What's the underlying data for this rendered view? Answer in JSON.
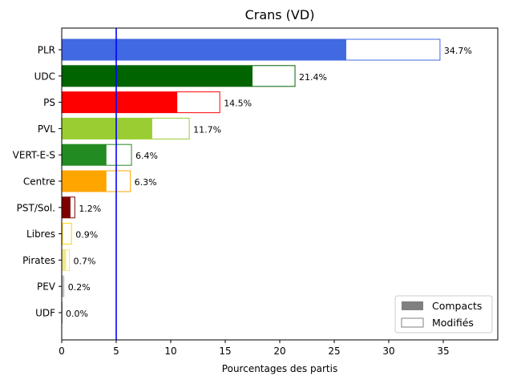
{
  "chart_data": {
    "type": "bar",
    "orientation": "horizontal",
    "title": "Crans (VD)",
    "xlabel": "Pourcentages des partis",
    "ylabel": "",
    "xlim": [
      0,
      40
    ],
    "xticks": [
      0,
      5,
      10,
      15,
      20,
      25,
      30,
      35
    ],
    "reference_line": {
      "x": 5,
      "color": "#0000ff"
    },
    "categories": [
      "PLR",
      "UDC",
      "PS",
      "PVL",
      "VERT-E-S",
      "Centre",
      "PST/Sol.",
      "Libres",
      "Pirates",
      "PEV",
      "UDF"
    ],
    "series": [
      {
        "name": "Compacts",
        "values": [
          26.1,
          17.5,
          10.6,
          8.3,
          4.1,
          4.1,
          0.8,
          0.1,
          0.4,
          0.2,
          0.0
        ]
      },
      {
        "name": "Modifiés",
        "values": [
          34.7,
          21.4,
          14.5,
          11.7,
          6.4,
          6.3,
          1.2,
          0.9,
          0.7,
          0.2,
          0.0
        ]
      }
    ],
    "data_labels": [
      "34.7%",
      "21.4%",
      "14.5%",
      "11.7%",
      "6.4%",
      "6.3%",
      "1.2%",
      "0.9%",
      "0.7%",
      "0.2%",
      "0.0%"
    ],
    "colors": [
      "#4169e1",
      "#006400",
      "#ff0000",
      "#9acd32",
      "#228b22",
      "#ffa500",
      "#800000",
      "#ffd700",
      "#f0e68c",
      "#c0c0c0",
      "#a9a9a9"
    ],
    "legend": {
      "placement": "lower-right",
      "entries": [
        {
          "label": "Compacts",
          "style": "filled",
          "color": "#808080"
        },
        {
          "label": "Modifiés",
          "style": "outline",
          "color": "#808080"
        }
      ]
    },
    "grid": false
  }
}
